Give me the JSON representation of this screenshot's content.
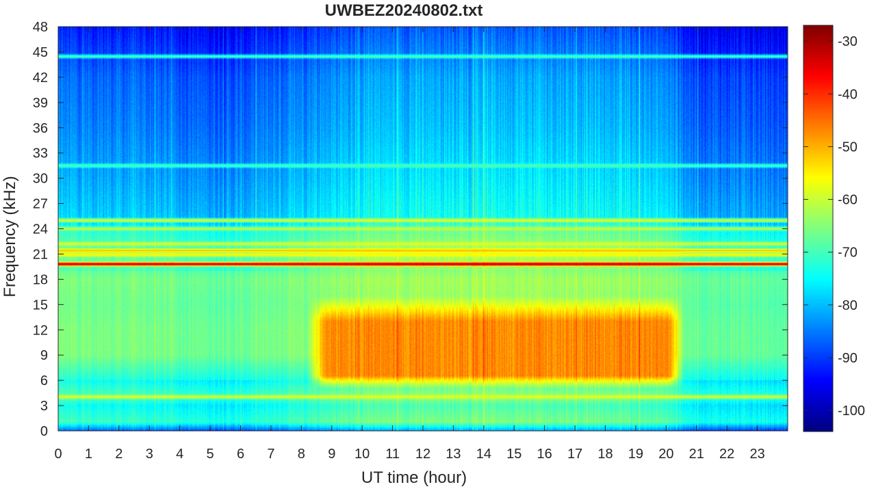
{
  "chart_data": {
    "type": "heatmap",
    "title": "UWBEZ20240802.txt",
    "xlabel": "UT time (hour)",
    "ylabel": "Frequency (kHz)",
    "xlim": [
      0,
      24
    ],
    "ylim": [
      0,
      48
    ],
    "x_ticks": [
      0,
      1,
      2,
      3,
      4,
      5,
      6,
      7,
      8,
      9,
      10,
      11,
      12,
      13,
      14,
      15,
      16,
      17,
      18,
      19,
      20,
      21,
      22,
      23
    ],
    "y_ticks": [
      0,
      3,
      6,
      9,
      12,
      15,
      18,
      21,
      24,
      27,
      30,
      33,
      36,
      39,
      42,
      45,
      48
    ],
    "colormap": "jet",
    "colorbar": {
      "range": [
        -104,
        -27
      ],
      "ticks": [
        -100,
        -90,
        -80,
        -70,
        -60,
        -50,
        -40,
        -30
      ]
    },
    "grid": false,
    "background_level_by_frequency_khz": [
      {
        "f": 0,
        "level": -82
      },
      {
        "f": 1,
        "level": -66
      },
      {
        "f": 3,
        "level": -70
      },
      {
        "f": 4,
        "level": -64
      },
      {
        "f": 6,
        "level": -70
      },
      {
        "f": 9,
        "level": -63
      },
      {
        "f": 12,
        "level": -63
      },
      {
        "f": 15,
        "level": -64
      },
      {
        "f": 18,
        "level": -63
      },
      {
        "f": 19,
        "level": -65
      },
      {
        "f": 21,
        "level": -62
      },
      {
        "f": 24,
        "level": -68
      },
      {
        "f": 25,
        "level": -74
      },
      {
        "f": 30,
        "level": -77
      },
      {
        "f": 36,
        "level": -80
      },
      {
        "f": 42,
        "level": -82
      },
      {
        "f": 48,
        "level": -88
      }
    ],
    "diurnal_modulation": [
      {
        "t": 0,
        "level": -4
      },
      {
        "t": 3,
        "level": -5
      },
      {
        "t": 5.5,
        "level": -7
      },
      {
        "t": 6.5,
        "level": -6
      },
      {
        "t": 8,
        "level": -3
      },
      {
        "t": 10,
        "level": 0
      },
      {
        "t": 14,
        "level": 1
      },
      {
        "t": 18,
        "level": 0
      },
      {
        "t": 20,
        "level": -2
      },
      {
        "t": 21,
        "level": -7
      },
      {
        "t": 24,
        "level": -8
      }
    ],
    "intense_region": {
      "time_range": [
        8.2,
        20.6
      ],
      "freq_range": [
        5,
        16
      ],
      "level": -47
    },
    "narrowband_lines": [
      {
        "freq_khz": 19.8,
        "level": -28
      },
      {
        "freq_khz": 21.4,
        "level": -50
      },
      {
        "freq_khz": 25.0,
        "level": -56
      },
      {
        "freq_khz": 24.0,
        "level": -60
      },
      {
        "freq_khz": 22.2,
        "level": -58
      },
      {
        "freq_khz": 20.9,
        "level": -55
      },
      {
        "freq_khz": 4.0,
        "level": -58
      },
      {
        "freq_khz": 44.5,
        "level": -68
      },
      {
        "freq_khz": 31.5,
        "level": -68
      }
    ]
  }
}
